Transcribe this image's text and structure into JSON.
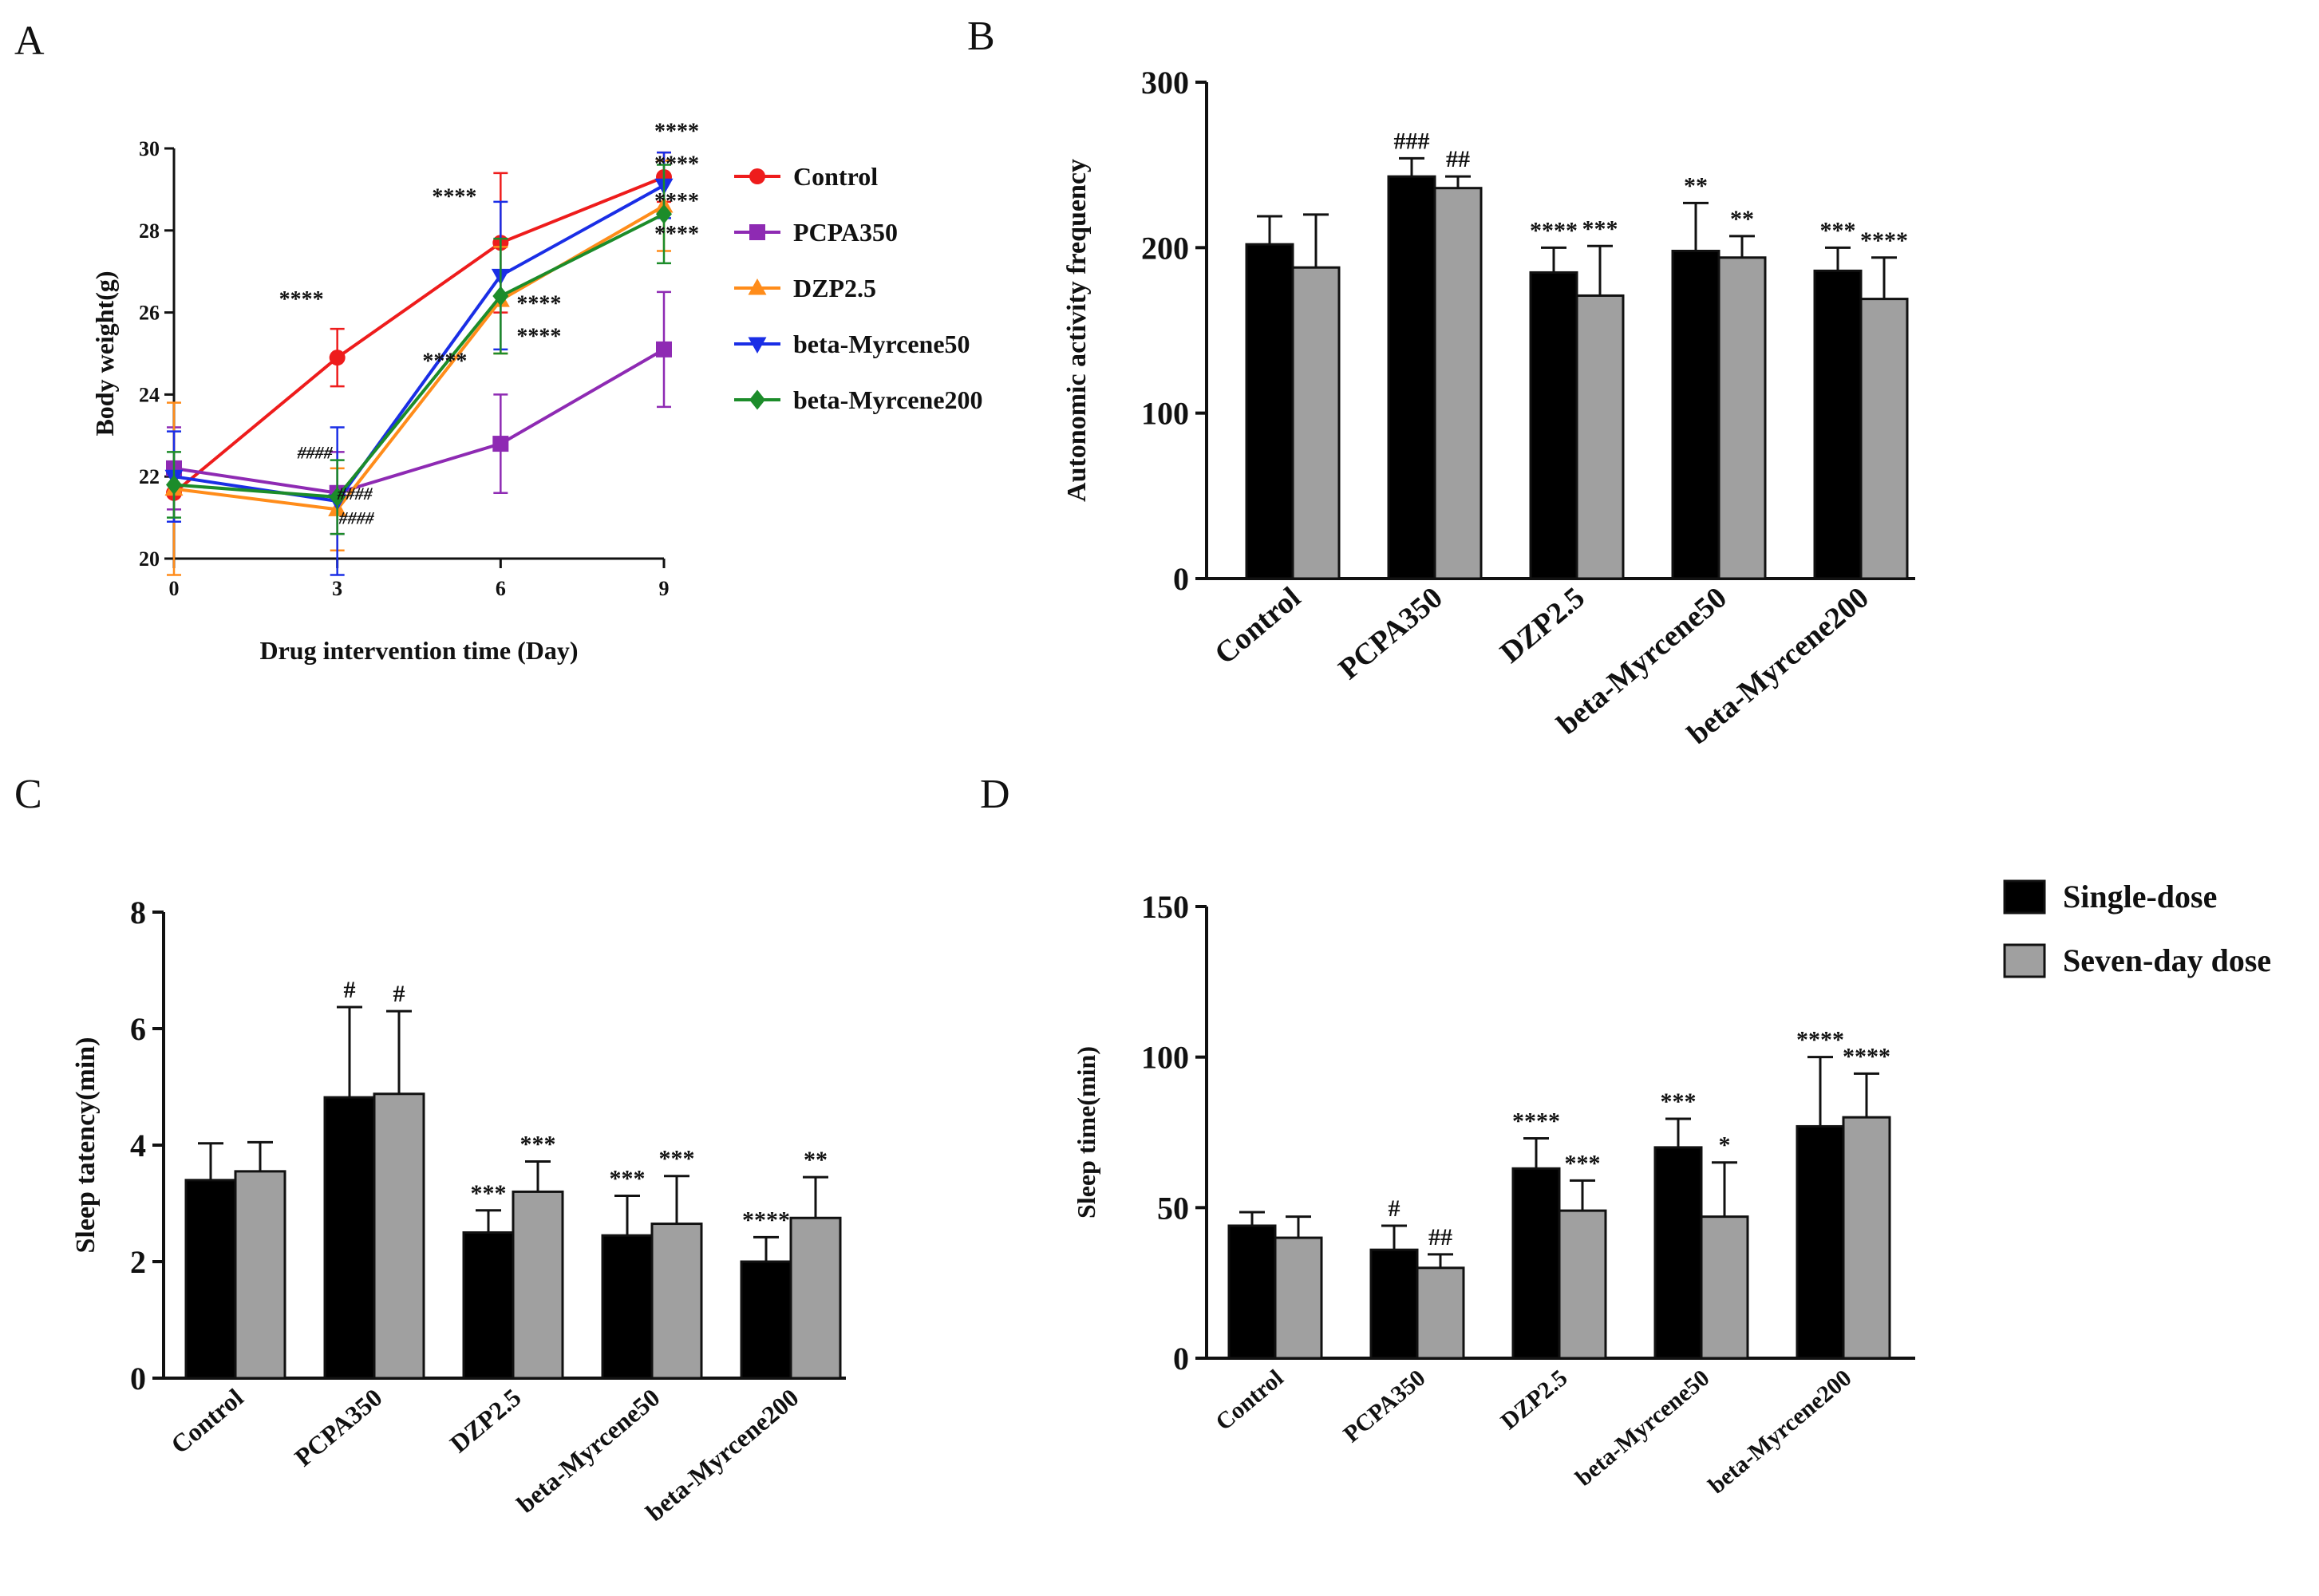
{
  "chart_data": [
    {
      "panel": "A",
      "type": "line",
      "xlabel": "Drug intervention time (Day)",
      "ylabel": "Body weight(g)",
      "x": [
        0,
        3,
        6,
        9
      ],
      "xlim": [
        0,
        9
      ],
      "ylim": [
        20,
        30
      ],
      "xticks": [
        "0",
        "3",
        "6",
        "9"
      ],
      "yticks": [
        "20",
        "22",
        "24",
        "26",
        "28",
        "30"
      ],
      "legend_position": "right",
      "series": [
        {
          "name": "Control",
          "color": "#ee1c1c",
          "marker": "circle",
          "values": [
            21.6,
            24.9,
            27.7,
            29.3
          ],
          "errors": [
            0.7,
            0.7,
            1.7,
            0.6
          ]
        },
        {
          "name": "PCPA350",
          "color": "#8e2ab3",
          "marker": "square",
          "values": [
            22.2,
            21.6,
            22.8,
            25.1
          ],
          "errors": [
            1.0,
            1.0,
            1.2,
            1.4
          ]
        },
        {
          "name": "DZP2.5",
          "color": "#ff8c1a",
          "marker": "triangle-up",
          "values": [
            21.7,
            21.2,
            26.3,
            28.6
          ],
          "errors": [
            2.1,
            1.0,
            1.3,
            1.1
          ]
        },
        {
          "name": "beta-Myrcene50",
          "color": "#1a2ee6",
          "marker": "triangle-down",
          "values": [
            22.0,
            21.4,
            26.9,
            29.1
          ],
          "errors": [
            1.1,
            1.8,
            1.8,
            0.8
          ]
        },
        {
          "name": "beta-Myrcene200",
          "color": "#1c8c2a",
          "marker": "diamond",
          "values": [
            21.8,
            21.5,
            26.4,
            28.4
          ],
          "errors": [
            0.8,
            0.9,
            1.4,
            1.2
          ]
        }
      ],
      "annotations": [
        {
          "text": "****",
          "x": 3,
          "y": 26.3,
          "color": "#111111"
        },
        {
          "text": "****",
          "x": 6,
          "y": 28.8,
          "color": "#111111"
        },
        {
          "text": "****",
          "x": 6,
          "y": 26.2,
          "color": "#111111"
        },
        {
          "text": "****",
          "x": 6,
          "y": 25.4,
          "color": "#111111"
        },
        {
          "text": "****",
          "x": 6,
          "y": 24.8,
          "color": "#111111"
        },
        {
          "text": "****",
          "x": 9,
          "y": 30.4,
          "color": "#111111"
        },
        {
          "text": "****",
          "x": 9,
          "y": 29.6,
          "color": "#111111"
        },
        {
          "text": "****",
          "x": 9,
          "y": 28.7,
          "color": "#111111"
        },
        {
          "text": "****",
          "x": 9,
          "y": 27.9,
          "color": "#111111"
        },
        {
          "text": "####",
          "x": 3,
          "y": 22.6,
          "color": "#777777"
        },
        {
          "text": "####",
          "x": 3,
          "y": 21.6,
          "color": "#777777"
        },
        {
          "text": "####",
          "x": 3,
          "y": 21.0,
          "color": "#777777"
        }
      ]
    },
    {
      "panel": "B",
      "type": "bar",
      "ylabel": "Autonomic activity frequency",
      "categories": [
        "Control",
        "PCPA350",
        "DZP2.5",
        "beta-Myrcene50",
        "beta-Myrcene200"
      ],
      "ylim": [
        0,
        300
      ],
      "yticks": [
        "0",
        "100",
        "200",
        "300"
      ],
      "series": [
        {
          "name": "Single-dose",
          "color": "#000000",
          "values": [
            202,
            243,
            185,
            198,
            186
          ],
          "errors": [
            17,
            11,
            15,
            29,
            14
          ],
          "labels": [
            "",
            "###",
            "****",
            "**",
            "***"
          ]
        },
        {
          "name": "Seven-day dose",
          "color": "#a0a0a0",
          "values": [
            188,
            236,
            171,
            194,
            169
          ],
          "errors": [
            32,
            7,
            30,
            13,
            25
          ],
          "labels": [
            "",
            "##",
            "***",
            "**",
            "****"
          ]
        }
      ]
    },
    {
      "panel": "C",
      "type": "bar",
      "ylabel": "Sleep tatency(min)",
      "categories": [
        "Control",
        "PCPA350",
        "DZP2.5",
        "beta-Myrcene50",
        "beta-Myrcene200"
      ],
      "ylim": [
        0,
        8
      ],
      "yticks": [
        "0",
        "2",
        "4",
        "6",
        "8"
      ],
      "series": [
        {
          "name": "Single-dose",
          "color": "#000000",
          "values": [
            3.4,
            4.82,
            2.5,
            2.45,
            2.0
          ],
          "errors": [
            0.63,
            1.55,
            0.38,
            0.68,
            0.42
          ],
          "labels": [
            "",
            "#",
            "***",
            "***",
            "****"
          ]
        },
        {
          "name": "Seven-day dose",
          "color": "#a0a0a0",
          "values": [
            3.55,
            4.88,
            3.2,
            2.65,
            2.75
          ],
          "errors": [
            0.5,
            1.42,
            0.52,
            0.82,
            0.7
          ],
          "labels": [
            "",
            "#",
            "***",
            "***",
            "**"
          ]
        }
      ]
    },
    {
      "panel": "D",
      "type": "bar",
      "ylabel": "Sleep time(min)",
      "categories": [
        "Control",
        "PCPA350",
        "DZP2.5",
        "beta-Myrcene50",
        "beta-Myrcene200"
      ],
      "ylim": [
        0,
        150
      ],
      "yticks": [
        "0",
        "50",
        "100",
        "150"
      ],
      "legend_position": "top-right",
      "series": [
        {
          "name": "Single-dose",
          "color": "#000000",
          "values": [
            44,
            36,
            63,
            70,
            77
          ],
          "errors": [
            4.5,
            8,
            10,
            9.5,
            23
          ],
          "labels": [
            "",
            "#",
            "****",
            "***",
            "****"
          ]
        },
        {
          "name": "Seven-day dose",
          "color": "#a0a0a0",
          "values": [
            40,
            30,
            49,
            47,
            80
          ],
          "errors": [
            7,
            4.5,
            10,
            18,
            14.5
          ],
          "labels": [
            "",
            "##",
            "***",
            "*",
            "****"
          ]
        }
      ]
    }
  ]
}
